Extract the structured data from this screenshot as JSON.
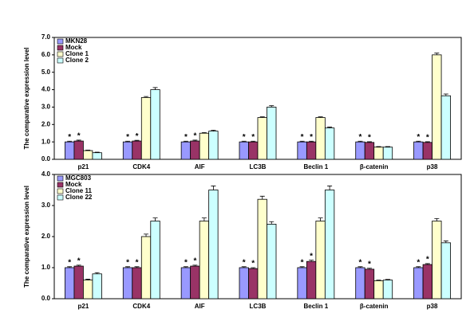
{
  "chart_data": [
    {
      "type": "bar",
      "y_label": "The comparative expression level",
      "categories": [
        "p21",
        "CDK4",
        "AIF",
        "LC3B",
        "Beclin 1",
        "β-catenin",
        "p38"
      ],
      "series": [
        {
          "name": "MKN28",
          "color": "#9999ff",
          "annotation": "*",
          "values": [
            1.0,
            1.0,
            1.0,
            1.0,
            1.0,
            1.0,
            1.0
          ],
          "errors": [
            0.04,
            0.04,
            0.04,
            0.04,
            0.04,
            0.04,
            0.04
          ]
        },
        {
          "name": "Mock",
          "color": "#993366",
          "annotation": "*",
          "values": [
            1.05,
            1.05,
            1.05,
            1.0,
            1.0,
            0.97,
            0.97
          ],
          "errors": [
            0.05,
            0.04,
            0.05,
            0.04,
            0.04,
            0.04,
            0.04
          ]
        },
        {
          "name": "Clone 1",
          "color": "#ffffcc",
          "values": [
            0.5,
            3.55,
            1.5,
            2.4,
            2.4,
            0.7,
            6.0
          ],
          "errors": [
            0.03,
            0.06,
            0.04,
            0.04,
            0.04,
            0.03,
            0.1
          ]
        },
        {
          "name": "Clone 2",
          "color": "#ccffff",
          "values": [
            0.38,
            4.0,
            1.62,
            3.0,
            1.8,
            0.7,
            3.65
          ],
          "errors": [
            0.03,
            0.12,
            0.05,
            0.08,
            0.05,
            0.03,
            0.1
          ]
        }
      ],
      "ylim": [
        0,
        7
      ],
      "yticks": [
        {
          "value": 0,
          "label": "0.0"
        },
        {
          "value": 1,
          "label": "1.0"
        },
        {
          "value": 2,
          "label": "2.0"
        },
        {
          "value": 3,
          "label": "3.0"
        },
        {
          "value": 4,
          "label": "4.0"
        },
        {
          "value": 5,
          "label": "5.0"
        },
        {
          "value": 6,
          "label": "6.0"
        },
        {
          "value": 7,
          "label": "7.0"
        }
      ],
      "legend": "top-left"
    },
    {
      "type": "bar",
      "y_label": "The comparative expression level",
      "categories": [
        "p21",
        "CDK4",
        "AIF",
        "LC3B",
        "Beclin 1",
        "β-catenin",
        "p38"
      ],
      "series": [
        {
          "name": "MGC803",
          "color": "#9999ff",
          "annotation": "*",
          "values": [
            1.0,
            1.0,
            1.0,
            1.0,
            1.0,
            1.0,
            1.0
          ],
          "errors": [
            0.03,
            0.03,
            0.03,
            0.03,
            0.03,
            0.03,
            0.03
          ]
        },
        {
          "name": "Mock",
          "color": "#993366",
          "annotation": "*",
          "values": [
            1.05,
            1.0,
            1.05,
            0.97,
            1.2,
            0.95,
            1.1
          ],
          "errors": [
            0.03,
            0.03,
            0.03,
            0.03,
            0.04,
            0.03,
            0.03
          ]
        },
        {
          "name": "Clone 11",
          "color": "#ffffcc",
          "values": [
            0.6,
            2.0,
            2.5,
            3.2,
            2.5,
            0.58,
            2.5
          ],
          "errors": [
            0.03,
            0.08,
            0.1,
            0.1,
            0.1,
            0.02,
            0.08
          ]
        },
        {
          "name": "Clone 22",
          "color": "#ccffff",
          "values": [
            0.8,
            2.5,
            3.5,
            2.4,
            3.5,
            0.6,
            1.8
          ],
          "errors": [
            0.04,
            0.1,
            0.13,
            0.08,
            0.13,
            0.02,
            0.06
          ]
        }
      ],
      "ylim": [
        0,
        4
      ],
      "yticks": [
        {
          "value": 0,
          "label": "0.0"
        },
        {
          "value": 1,
          "label": "1.0"
        },
        {
          "value": 2,
          "label": "2.0"
        },
        {
          "value": 3,
          "label": "3.0"
        },
        {
          "value": 4,
          "label": "4.0"
        }
      ],
      "legend": "top-left"
    }
  ]
}
